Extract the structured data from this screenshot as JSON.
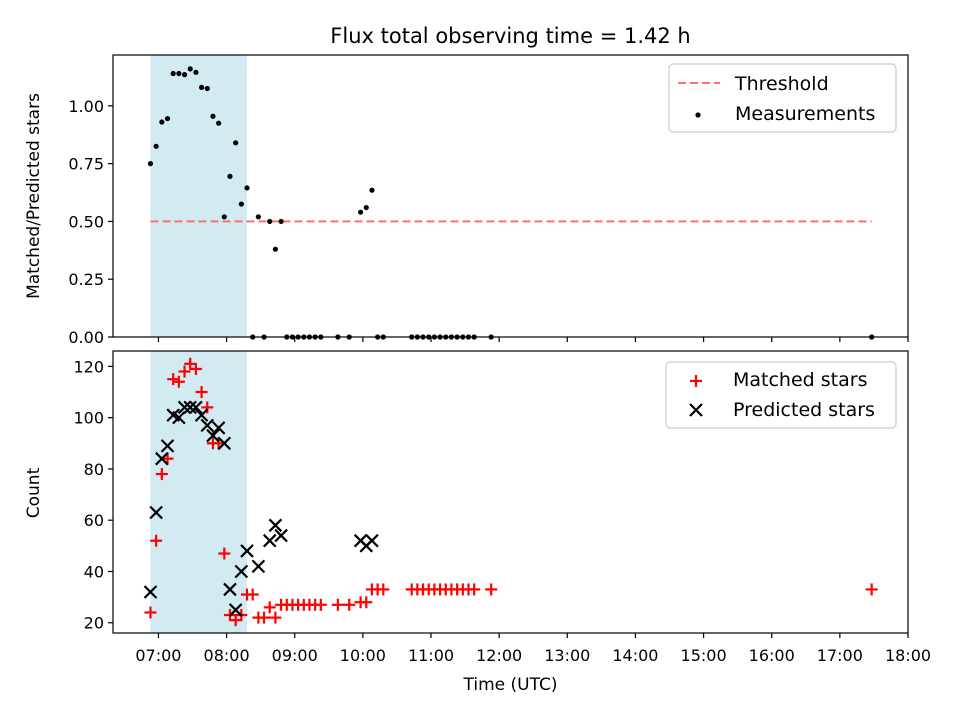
{
  "chart_data": [
    {
      "type": "scatter",
      "title": "Flux total observing time = 1.42 h",
      "ylabel": "Matched/Predicted stars",
      "xlabel": "",
      "ylim": [
        0,
        1.22
      ],
      "yticks": [
        "0.00",
        "0.25",
        "0.50",
        "0.75",
        "1.00"
      ],
      "grid": false,
      "legend_position": "top-right",
      "threshold": {
        "name": "Threshold",
        "value": 0.5,
        "x_start": "06:53",
        "x_end": "17:28",
        "color": "#ff6f6f"
      },
      "shaded_interval": {
        "start": "06:53",
        "end": "08:18",
        "color": "#add8e6"
      },
      "series": [
        {
          "name": "Measurements",
          "color": "#000000",
          "x": [
            "06:53",
            "06:58",
            "07:03",
            "07:08",
            "07:13",
            "07:18",
            "07:23",
            "07:28",
            "07:33",
            "07:38",
            "07:43",
            "07:48",
            "07:53",
            "07:58",
            "08:03",
            "08:08",
            "08:13",
            "08:18",
            "08:23",
            "08:28",
            "08:33",
            "08:38",
            "08:43",
            "08:48",
            "08:53",
            "08:58",
            "09:03",
            "09:08",
            "09:13",
            "09:18",
            "09:23",
            "09:38",
            "09:48",
            "09:58",
            "10:03",
            "10:08",
            "10:13",
            "10:18",
            "10:43",
            "10:48",
            "10:53",
            "10:58",
            "11:03",
            "11:08",
            "11:13",
            "11:18",
            "11:23",
            "11:28",
            "11:33",
            "11:38",
            "11:53",
            "17:28"
          ],
          "y": [
            0.75,
            0.825,
            0.93,
            0.945,
            1.14,
            1.14,
            1.135,
            1.16,
            1.145,
            1.08,
            1.075,
            0.955,
            0.925,
            0.52,
            0.695,
            0.84,
            0.575,
            0.645,
            0.0,
            0.52,
            0.0,
            0.5,
            0.38,
            0.5,
            0.0,
            0.0,
            0.0,
            0.0,
            0.0,
            0.0,
            0.0,
            0.0,
            0.0,
            0.54,
            0.56,
            0.635,
            0.0,
            0.0,
            0.0,
            0.0,
            0.0,
            0.0,
            0.0,
            0.0,
            0.0,
            0.0,
            0.0,
            0.0,
            0.0,
            0.0,
            0.0,
            0.0
          ]
        }
      ]
    },
    {
      "type": "scatter",
      "title": "",
      "ylabel": "Count",
      "xlabel": "Time (UTC)",
      "ylim": [
        16,
        126
      ],
      "yticks": [
        "20",
        "40",
        "60",
        "80",
        "100",
        "120"
      ],
      "xticks": [
        "07:00",
        "08:00",
        "09:00",
        "10:00",
        "11:00",
        "12:00",
        "13:00",
        "14:00",
        "15:00",
        "16:00",
        "17:00",
        "18:00"
      ],
      "xlim": [
        "06:20",
        "18:00"
      ],
      "grid": false,
      "legend_position": "top-right",
      "shaded_interval": {
        "start": "06:53",
        "end": "08:18",
        "color": "#add8e6"
      },
      "series": [
        {
          "name": "Matched stars",
          "marker": "plus",
          "color": "#ff0000",
          "x": [
            "06:53",
            "06:58",
            "07:03",
            "07:08",
            "07:13",
            "07:18",
            "07:23",
            "07:28",
            "07:33",
            "07:38",
            "07:43",
            "07:48",
            "07:53",
            "07:58",
            "08:03",
            "08:08",
            "08:13",
            "08:18",
            "08:23",
            "08:28",
            "08:33",
            "08:38",
            "08:43",
            "08:48",
            "08:53",
            "08:58",
            "09:03",
            "09:08",
            "09:13",
            "09:18",
            "09:23",
            "09:38",
            "09:48",
            "09:58",
            "10:03",
            "10:08",
            "10:13",
            "10:18",
            "10:43",
            "10:48",
            "10:53",
            "10:58",
            "11:03",
            "11:08",
            "11:13",
            "11:18",
            "11:23",
            "11:28",
            "11:33",
            "11:38",
            "11:53",
            "17:28"
          ],
          "y": [
            24,
            52,
            78,
            84,
            115,
            114,
            118,
            121,
            119,
            110,
            104,
            90,
            90,
            47,
            23,
            21,
            23,
            31,
            31,
            22,
            22,
            26,
            22,
            27,
            27,
            27,
            27,
            27,
            27,
            27,
            27,
            27,
            27,
            28,
            28,
            33,
            33,
            33,
            33,
            33,
            33,
            33,
            33,
            33,
            33,
            33,
            33,
            33,
            33,
            33,
            33,
            33
          ]
        },
        {
          "name": "Predicted stars",
          "marker": "x",
          "color": "#000000",
          "x": [
            "06:53",
            "06:58",
            "07:03",
            "07:08",
            "07:13",
            "07:18",
            "07:23",
            "07:28",
            "07:33",
            "07:38",
            "07:43",
            "07:48",
            "07:53",
            "07:58",
            "08:03",
            "08:08",
            "08:13",
            "08:18",
            "08:28",
            "08:38",
            "08:43",
            "08:48",
            "09:58",
            "10:03",
            "10:08"
          ],
          "y": [
            32,
            63,
            84,
            89,
            101,
            100,
            104,
            104,
            104,
            101,
            97,
            93,
            96,
            90,
            33,
            25,
            40,
            48,
            42,
            52,
            58,
            54,
            52,
            50,
            52
          ]
        }
      ]
    }
  ]
}
